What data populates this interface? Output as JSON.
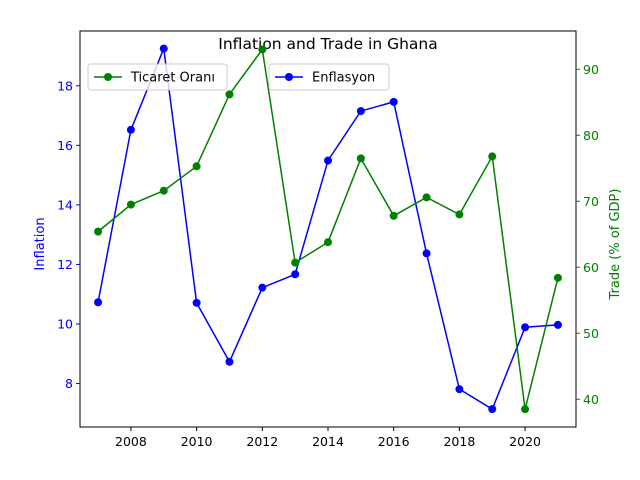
{
  "chart_data": {
    "type": "line",
    "title": "Inflation and Trade in Ghana",
    "xlabel": "",
    "x": [
      2007,
      2008,
      2009,
      2010,
      2011,
      2012,
      2013,
      2014,
      2015,
      2016,
      2017,
      2018,
      2019,
      2020,
      2021
    ],
    "xlim": [
      2006.45,
      2021.55
    ],
    "xticks": [
      2008,
      2010,
      2012,
      2014,
      2016,
      2018,
      2020
    ],
    "left_axis": {
      "label": "Inflation",
      "color": "#0000ff",
      "ylim": [
        6.54,
        19.84
      ],
      "ticks": [
        8,
        10,
        12,
        14,
        16,
        18
      ]
    },
    "right_axis": {
      "label": "Trade (% of GDP)",
      "color": "#008000",
      "ylim": [
        35.8,
        95.8
      ],
      "ticks": [
        40,
        50,
        60,
        70,
        80,
        90
      ]
    },
    "series": [
      {
        "name": "Enflasyon",
        "axis": "left",
        "color": "#0000ff",
        "values": [
          10.73,
          16.52,
          19.25,
          10.71,
          8.73,
          11.22,
          11.67,
          15.49,
          17.15,
          17.46,
          12.37,
          7.81,
          7.14,
          9.89,
          9.97
        ]
      },
      {
        "name": "Ticaret Oranı",
        "axis": "right",
        "color": "#008000",
        "values": [
          65.4,
          69.5,
          71.6,
          75.3,
          86.2,
          93.0,
          60.7,
          63.8,
          76.5,
          67.8,
          70.6,
          68.0,
          76.8,
          38.5,
          58.4
        ]
      }
    ],
    "legend": [
      {
        "label": "Ticaret Oranı",
        "color": "#008000",
        "placement": "upper-left"
      },
      {
        "label": "Enflasyon",
        "color": "#0000ff",
        "placement": "upper-center"
      }
    ],
    "grid": false
  }
}
